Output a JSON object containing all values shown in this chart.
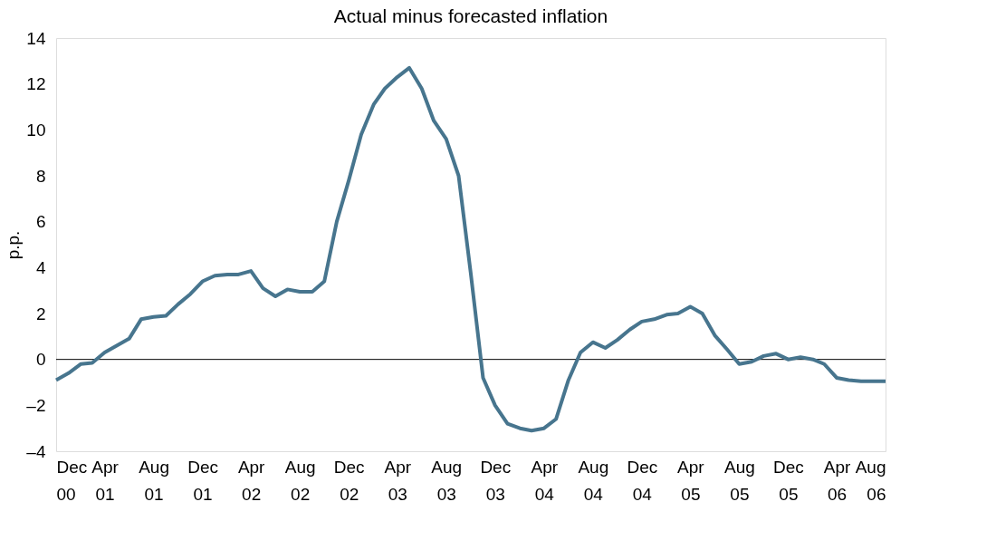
{
  "chart_data": {
    "type": "line",
    "title": "Actual minus forecasted inflation",
    "ylabel": "p.p.",
    "x": [
      "2000-12",
      "2001-01",
      "2001-02",
      "2001-03",
      "2001-04",
      "2001-05",
      "2001-06",
      "2001-07",
      "2001-08",
      "2001-09",
      "2001-10",
      "2001-11",
      "2001-12",
      "2002-01",
      "2002-02",
      "2002-03",
      "2002-04",
      "2002-05",
      "2002-06",
      "2002-07",
      "2002-08",
      "2002-09",
      "2002-10",
      "2002-11",
      "2002-12",
      "2003-01",
      "2003-02",
      "2003-03",
      "2003-04",
      "2003-05",
      "2003-06",
      "2003-07",
      "2003-08",
      "2003-09",
      "2003-10",
      "2003-11",
      "2003-12",
      "2004-01",
      "2004-02",
      "2004-03",
      "2004-04",
      "2004-05",
      "2004-06",
      "2004-07",
      "2004-08",
      "2004-09",
      "2004-10",
      "2004-11",
      "2004-12",
      "2005-01",
      "2005-02",
      "2005-03",
      "2005-04",
      "2005-05",
      "2005-06",
      "2005-07",
      "2005-08",
      "2005-09",
      "2005-10",
      "2005-11",
      "2005-12",
      "2006-01",
      "2006-02",
      "2006-03",
      "2006-04",
      "2006-05",
      "2006-06",
      "2006-07",
      "2006-08"
    ],
    "series": [
      {
        "color": "#47758e",
        "values": [
          -0.9,
          -0.6,
          -0.2,
          -0.15,
          0.3,
          0.6,
          0.9,
          1.75,
          1.85,
          1.9,
          2.4,
          2.85,
          3.4,
          3.65,
          3.7,
          3.7,
          3.85,
          3.1,
          2.75,
          3.05,
          2.95,
          2.95,
          3.4,
          6.0,
          7.8,
          9.8,
          11.1,
          11.8,
          12.3,
          12.7,
          11.8,
          10.4,
          9.6,
          8.0,
          3.8,
          -0.8,
          -2.0,
          -2.8,
          -3.0,
          -3.1,
          -3.0,
          -2.6,
          -0.9,
          0.3,
          0.75,
          0.5,
          0.85,
          1.3,
          1.65,
          1.75,
          1.95,
          2.0,
          2.3,
          2.0,
          1.05,
          0.45,
          -0.2,
          -0.1,
          0.15,
          0.25,
          0.0,
          0.1,
          0.0,
          -0.2,
          -0.8,
          -0.9,
          -0.95,
          -0.95,
          -0.95
        ]
      }
    ],
    "xlim": [
      "2000-12",
      "2006-08"
    ],
    "xticks": [
      {
        "value": "2000-12",
        "label": "Dec 00"
      },
      {
        "value": "2001-04",
        "label": "Apr 01"
      },
      {
        "value": "2001-08",
        "label": "Aug 01"
      },
      {
        "value": "2001-12",
        "label": "Dec 01"
      },
      {
        "value": "2002-04",
        "label": "Apr 02"
      },
      {
        "value": "2002-08",
        "label": "Aug 02"
      },
      {
        "value": "2002-12",
        "label": "Dec 02"
      },
      {
        "value": "2003-04",
        "label": "Apr 03"
      },
      {
        "value": "2003-08",
        "label": "Aug 03"
      },
      {
        "value": "2003-12",
        "label": "Dec 03"
      },
      {
        "value": "2004-04",
        "label": "Apr 04"
      },
      {
        "value": "2004-08",
        "label": "Aug 04"
      },
      {
        "value": "2004-12",
        "label": "Dec 04"
      },
      {
        "value": "2005-04",
        "label": "Apr 05"
      },
      {
        "value": "2005-08",
        "label": "Aug 05"
      },
      {
        "value": "2005-12",
        "label": "Dec 05"
      },
      {
        "value": "2006-04",
        "label": "Apr 06"
      },
      {
        "value": "2006-08",
        "label": "Aug 06"
      }
    ],
    "ylim": [
      -4,
      14
    ],
    "yticks": [
      {
        "value": -4,
        "label": "–4"
      },
      {
        "value": -2,
        "label": "–2"
      },
      0,
      2,
      4,
      6,
      8,
      10,
      12,
      14
    ],
    "ref_lines": [
      {
        "axis": "y",
        "value": 0,
        "color": "#000000"
      }
    ],
    "grid": false,
    "line_style": "solid",
    "marker": "none"
  }
}
